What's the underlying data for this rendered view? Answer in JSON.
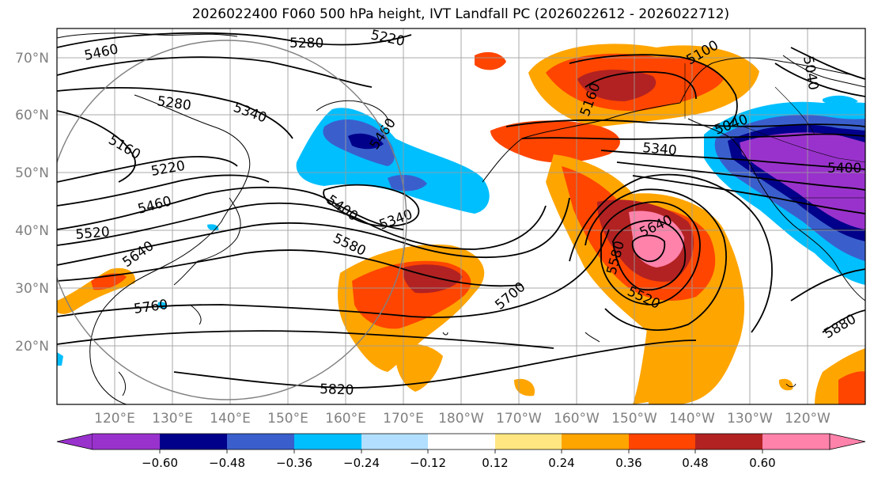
{
  "title": "2026022400 F060 500 hPa height, IVT Landfall PC (2026022612 - 2026022712)",
  "lat_labels": [
    "70°N",
    "60°N",
    "50°N",
    "40°N",
    "30°N",
    "20°N"
  ],
  "lon_labels": [
    "120°E",
    "130°E",
    "140°E",
    "150°E",
    "160°E",
    "170°E",
    "180°W",
    "170°W",
    "160°W",
    "150°W",
    "140°W",
    "130°W",
    "120°W"
  ],
  "colorbar": {
    "ticks": [
      "−0.60",
      "−0.48",
      "−0.36",
      "−0.24",
      "−0.12",
      "0.12",
      "0.24",
      "0.36",
      "0.48",
      "0.60"
    ],
    "colors": [
      "#9932cc",
      "#00008b",
      "#3a5fcd",
      "#00bfff",
      "#b2dfff",
      "#ffffff",
      "#ffe680",
      "#ffa500",
      "#ff4500",
      "#b22222",
      "#ff82ab"
    ]
  },
  "contour_labels": [
    "5460",
    "5280",
    "5220",
    "5100",
    "5040",
    "5280",
    "5340",
    "5160",
    "5220",
    "5460",
    "5460",
    "5160",
    "5040",
    "5340",
    "5400",
    "5340",
    "5400",
    "5520",
    "5640",
    "5580",
    "5700",
    "5640",
    "5580",
    "5520",
    "5760",
    "5820",
    "5880"
  ]
}
